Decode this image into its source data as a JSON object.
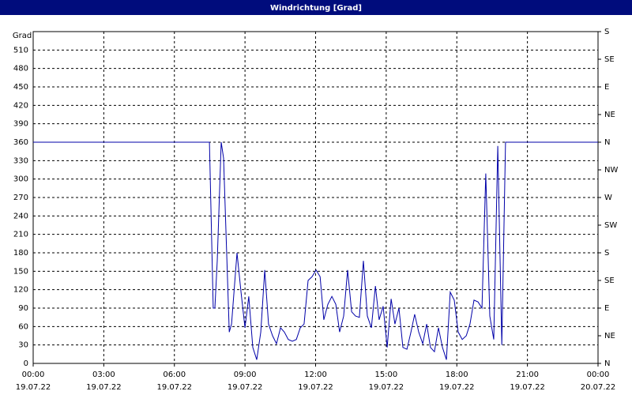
{
  "chart_data": {
    "type": "line",
    "title": "Windrichtung [Grad]",
    "y_label": "Grad",
    "color": "#0000a8",
    "grid": true,
    "xlim": [
      0,
      24
    ],
    "xticks": [
      {
        "value": 0,
        "label": "00:00",
        "date": "19.07.22"
      },
      {
        "value": 3,
        "label": "03:00",
        "date": "19.07.22"
      },
      {
        "value": 6,
        "label": "06:00",
        "date": "19.07.22"
      },
      {
        "value": 9,
        "label": "09:00",
        "date": "19.07.22"
      },
      {
        "value": 12,
        "label": "12:00",
        "date": "19.07.22"
      },
      {
        "value": 15,
        "label": "15:00",
        "date": "19.07.22"
      },
      {
        "value": 18,
        "label": "18:00",
        "date": "19.07.22"
      },
      {
        "value": 21,
        "label": "21:00",
        "date": "19.07.22"
      },
      {
        "value": 24,
        "label": "00:00",
        "date": "20.07.22"
      }
    ],
    "ylim": [
      0,
      540
    ],
    "yticks": [
      0,
      30,
      60,
      90,
      120,
      150,
      180,
      210,
      240,
      270,
      300,
      330,
      360,
      390,
      420,
      450,
      480,
      510
    ],
    "y2lim": [
      0,
      540
    ],
    "y2ticks": [
      {
        "value": 0,
        "label": "N"
      },
      {
        "value": 45,
        "label": "NE"
      },
      {
        "value": 90,
        "label": "E"
      },
      {
        "value": 135,
        "label": "SE"
      },
      {
        "value": 180,
        "label": "S"
      },
      {
        "value": 225,
        "label": "SW"
      },
      {
        "value": 270,
        "label": "W"
      },
      {
        "value": 315,
        "label": "NW"
      },
      {
        "value": 360,
        "label": "N"
      },
      {
        "value": 405,
        "label": "NE"
      },
      {
        "value": 450,
        "label": "E"
      },
      {
        "value": 495,
        "label": "SE"
      },
      {
        "value": 540,
        "label": "S"
      }
    ],
    "x": [
      0,
      7.49,
      7.65,
      7.72,
      7.82,
      7.99,
      8.09,
      8.33,
      8.43,
      8.66,
      8.83,
      9.0,
      9.16,
      9.33,
      9.5,
      9.67,
      9.84,
      10.0,
      10.17,
      10.34,
      10.51,
      10.67,
      10.84,
      11.01,
      11.18,
      11.35,
      11.51,
      11.68,
      11.85,
      12.02,
      12.19,
      12.35,
      12.52,
      12.69,
      12.86,
      13.02,
      13.19,
      13.36,
      13.53,
      13.7,
      13.86,
      14.03,
      14.2,
      14.37,
      14.54,
      14.7,
      14.87,
      15.04,
      15.21,
      15.37,
      15.54,
      15.71,
      15.88,
      16.05,
      16.21,
      16.38,
      16.55,
      16.72,
      16.88,
      17.05,
      17.22,
      17.39,
      17.56,
      17.72,
      17.89,
      18.06,
      18.23,
      18.4,
      18.56,
      18.73,
      18.9,
      19.07,
      19.23,
      19.4,
      19.57,
      19.74,
      19.91,
      20.07,
      24
    ],
    "values": [
      360,
      360,
      90,
      90,
      167,
      360,
      334,
      51,
      64,
      180,
      116,
      58,
      109,
      26,
      6,
      51,
      152,
      64,
      45,
      32,
      58,
      51,
      39,
      36,
      39,
      58,
      64,
      135,
      141,
      152,
      141,
      71,
      96,
      109,
      96,
      51,
      77,
      152,
      84,
      77,
      75,
      167,
      77,
      58,
      126,
      71,
      93,
      26,
      105,
      64,
      90,
      26,
      23,
      51,
      80,
      51,
      32,
      64,
      26,
      19,
      58,
      26,
      6,
      116,
      103,
      51,
      39,
      45,
      64,
      103,
      100,
      90,
      309,
      77,
      39,
      354,
      30,
      360,
      360
    ]
  }
}
